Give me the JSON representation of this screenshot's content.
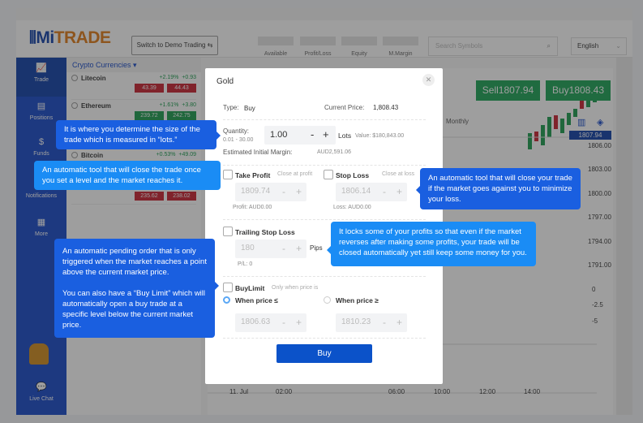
{
  "header": {
    "logo_prefix": "Mi",
    "logo_suffix": "TRADE",
    "demo_button": "Switch to Demo Trading ⇆",
    "stats": [
      "Available",
      "Profit/Loss",
      "Equity",
      "M.Margin"
    ],
    "search_placeholder": "Search Symbols",
    "language": "English"
  },
  "sidebar": {
    "items": [
      {
        "label": "Trade",
        "icon": "chart-icon"
      },
      {
        "label": "Positions",
        "icon": "clipboard-icon"
      },
      {
        "label": "Funds",
        "icon": "wallet-icon"
      },
      {
        "label": "Notifications",
        "icon": "bell-icon"
      },
      {
        "label": "More",
        "icon": "grid-icon"
      }
    ],
    "live_chat": "Live Chat"
  },
  "watchlist": {
    "category": "Crypto Currencies ▾",
    "rows": [
      {
        "name": "Litecoin",
        "pct": "+2.19%",
        "chg": "+0.93",
        "sell": "43.39",
        "buy": "44.43",
        "color": "#c8202f"
      },
      {
        "name": "Ethereum",
        "pct": "+1.61%",
        "chg": "+3.80",
        "sell": "239.72",
        "buy": "242.75",
        "color": "#1a9c4d"
      },
      {
        "name": "Bitcoin",
        "pct": "+0.53%",
        "chg": "+49.09",
        "sell": "",
        "buy": "",
        "color": "#1a9c4d"
      },
      {
        "name": "",
        "pct": "",
        "chg": "",
        "sell": "235.62",
        "buy": "238.02",
        "color": "#c8202f"
      }
    ]
  },
  "chart": {
    "sell_button": "Sell1807.94",
    "buy_button": "Buy1808.43",
    "period": "Monthly",
    "current_price": "1807.94",
    "y_labels": [
      "1806.00",
      "1803.00",
      "1800.00",
      "1797.00",
      "1794.00",
      "1791.00",
      "0",
      "-2.5",
      "-5"
    ],
    "x_labels": [
      "11. Jul",
      "02:00",
      "06:00",
      "10:00",
      "12:00",
      "14:00"
    ]
  },
  "modal": {
    "title": "Gold",
    "type_label": "Type:",
    "type_value": "Buy",
    "current_price_label": "Current Price:",
    "current_price_value": "1,808.43",
    "quantity_label": "Quantity:",
    "quantity_range": "0.01 - 30.00",
    "quantity_value": "1.00",
    "lots": "Lots",
    "value_label": "Value: $180,843.00",
    "margin_label": "Estimated Initial Margin:",
    "margin_value": "AUD2,591.06",
    "take_profit": "Take Profit",
    "take_profit_hint": "Close at profit",
    "take_profit_value": "1809.74",
    "profit_label": "Profit: AUD0.00",
    "stop_loss": "Stop Loss",
    "stop_loss_hint": "Close at loss",
    "stop_loss_value": "1806.14",
    "loss_label": "Loss: AUD0.00",
    "trailing_stop": "Trailing Stop Loss",
    "trailing_value": "180",
    "pips": "Pips",
    "pl_label": "P/L: 0",
    "buy_limit": "BuyLimit",
    "buy_limit_hint": "Only when price is",
    "when_le": "When price ≤",
    "when_ge": "When price ≥",
    "le_value": "1806.63",
    "ge_value": "1810.23",
    "buy_button": "Buy"
  },
  "tooltips": {
    "quantity": "It is where you determine the size of the trade which is measured in “lots.”",
    "take_profit": "An automatic tool that will close the trade once you set a level and the market reaches it.",
    "stop_loss": "An automatic tool that will close your trade if the market goes against you to minimize your loss.",
    "trailing": "It locks some of your profits so that even if the market reverses after making some profits, your trade will be closed automatically yet still keep some money for you.",
    "buy_limit_1": "An automatic pending order that is only triggered when the market reaches a point above the current market price.",
    "buy_limit_2": "You can also have a “Buy Limit” which will automatically open a buy trade at a specific level below the current market price."
  }
}
